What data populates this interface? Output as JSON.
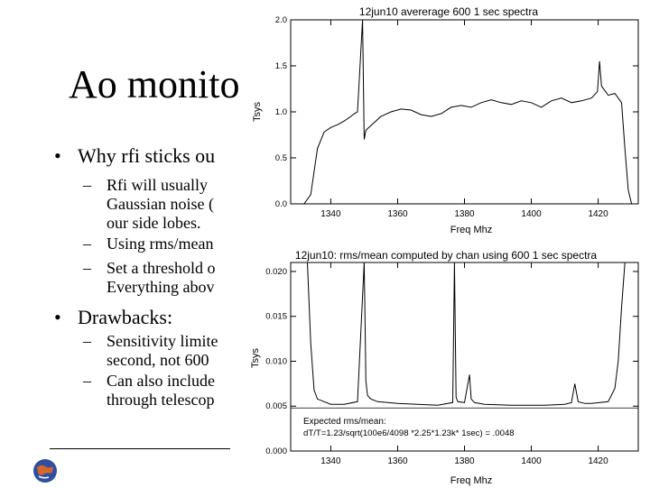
{
  "slide": {
    "title": "Ao monito",
    "bullet1": "Why rfi sticks ou",
    "sub1_line1": "Rfi will usually",
    "sub1_line2": "Gaussian noise (",
    "sub1_line3": "our side lobes.",
    "sub2": "Using rms/mean",
    "sub3_line1": "Set a threshold o",
    "sub3_line2": "Everything abov",
    "bullet2": "Drawbacks:",
    "sub4_line1": "Sensitivity limite",
    "sub4_line2": "second, not 600",
    "sub5_line1": "Can also include",
    "sub5_line2": "through telescop",
    "bullet_glyph": "•",
    "dash_glyph": "–"
  },
  "chart_data": [
    {
      "type": "line",
      "title": "12jun10 avererage 600 1 sec spectra",
      "xlabel": "Freq Mhz",
      "ylabel": "Tsys",
      "xlim": [
        1328,
        1432
      ],
      "ylim": [
        0.0,
        2.0
      ],
      "xticks": [
        "1340",
        "1360",
        "1380",
        "1400",
        "1420"
      ],
      "yticks": [
        "0.0",
        "0.5",
        "1.0",
        "1.5",
        "2.0"
      ],
      "x": [
        1328,
        1330,
        1332,
        1334,
        1335,
        1336,
        1338,
        1340,
        1342,
        1344,
        1346,
        1347,
        1348,
        1349.5,
        1350,
        1350.5,
        1352,
        1355,
        1358,
        1361,
        1364,
        1367,
        1370,
        1373,
        1376,
        1379,
        1382,
        1385,
        1388,
        1391,
        1394,
        1397,
        1400,
        1403,
        1406,
        1409,
        1412,
        1415,
        1418,
        1419.8,
        1420.4,
        1421,
        1423,
        1425,
        1427,
        1428,
        1429,
        1430,
        1432
      ],
      "values": [
        0.0,
        0.0,
        0.0,
        0.1,
        0.35,
        0.6,
        0.78,
        0.83,
        0.86,
        0.9,
        0.95,
        0.98,
        1.0,
        2.0,
        0.7,
        0.8,
        0.85,
        0.95,
        1.0,
        1.03,
        1.02,
        0.97,
        0.95,
        0.98,
        1.05,
        1.07,
        1.05,
        1.1,
        1.13,
        1.1,
        1.08,
        1.12,
        1.1,
        1.05,
        1.12,
        1.15,
        1.1,
        1.12,
        1.15,
        1.22,
        1.55,
        1.28,
        1.18,
        1.2,
        1.1,
        0.6,
        0.15,
        0.0,
        0.0
      ]
    },
    {
      "type": "line",
      "title": "12jun10: rms/mean computed by chan using 600 1 sec spectra",
      "xlabel": "Freq Mhz",
      "ylabel": "Tsys",
      "xlim": [
        1328,
        1432
      ],
      "ylim": [
        0.0,
        0.021
      ],
      "xticks": [
        "1340",
        "1360",
        "1380",
        "1400",
        "1420"
      ],
      "yticks": [
        "0.000",
        "0.005",
        "0.010",
        "0.015",
        "0.020"
      ],
      "x": [
        1328,
        1333,
        1334,
        1335,
        1336,
        1338,
        1340,
        1344,
        1348,
        1350,
        1350.5,
        1351,
        1352,
        1354,
        1360,
        1366,
        1372,
        1376.5,
        1377,
        1377.5,
        1378,
        1380,
        1381.5,
        1382,
        1383,
        1386,
        1394,
        1404,
        1410,
        1412,
        1413,
        1414,
        1416,
        1418,
        1423,
        1425,
        1426,
        1427,
        1428,
        1430,
        1432
      ],
      "values": [
        0.021,
        0.021,
        0.012,
        0.0068,
        0.0058,
        0.0055,
        0.0052,
        0.0052,
        0.0055,
        0.021,
        0.0078,
        0.0062,
        0.0058,
        0.0055,
        0.0053,
        0.0052,
        0.0051,
        0.0054,
        0.021,
        0.006,
        0.0055,
        0.0054,
        0.0085,
        0.0058,
        0.0054,
        0.0052,
        0.0051,
        0.0051,
        0.0052,
        0.0054,
        0.0075,
        0.0055,
        0.0053,
        0.0053,
        0.0055,
        0.007,
        0.01,
        0.016,
        0.021,
        0.021,
        0.021
      ],
      "hline": 0.0048,
      "annotation_label": "Expected rms/mean:",
      "annotation_formula": "dT/T=1.23/sqrt(100e6/4098 *2.25*1.23k* 1sec) = .0048",
      "annotation_color": "#d40000"
    }
  ]
}
